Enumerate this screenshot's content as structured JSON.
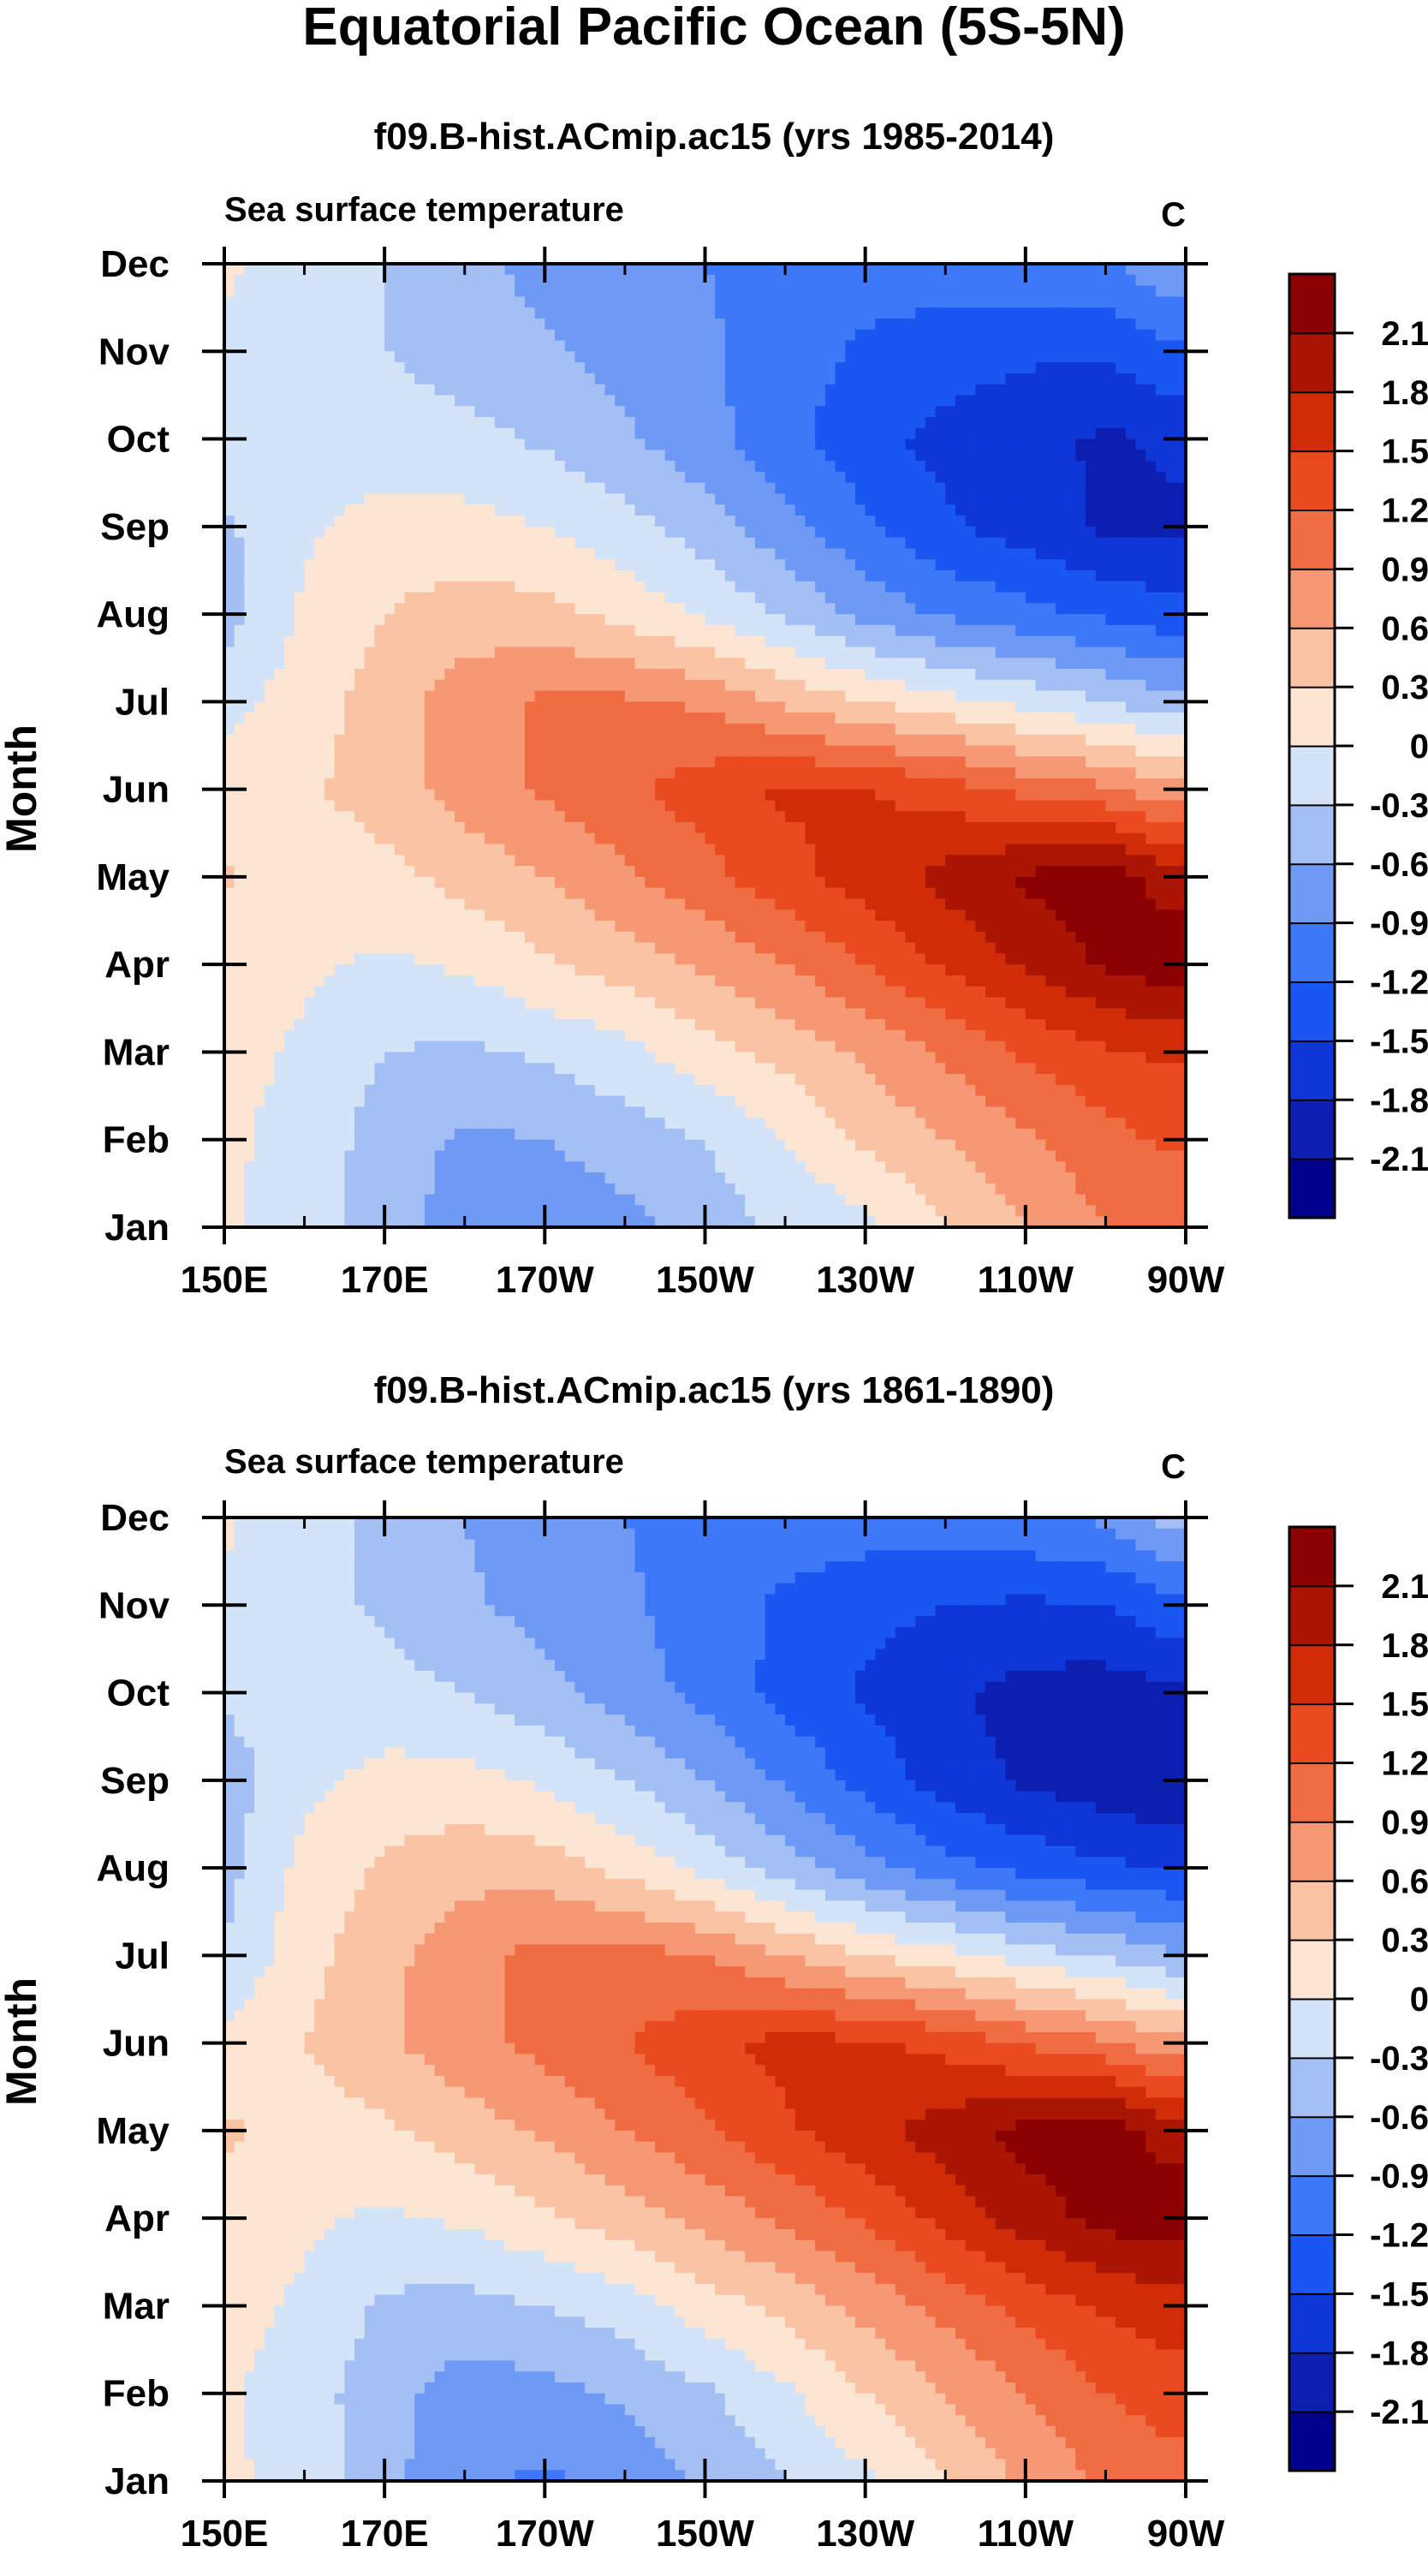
{
  "figure": {
    "title": "Equatorial Pacific Ocean (5S-5N)"
  },
  "chart_data": [
    {
      "type": "heatmap",
      "title": "f09.B-hist.ACmip.ac15 (yrs 1985-2014)",
      "subtitle_left": "Sea surface temperature",
      "subtitle_right": "C",
      "xlabel": "",
      "ylabel": "Month",
      "x_tick_labels": [
        "150E",
        "170E",
        "170W",
        "150W",
        "130W",
        "110W",
        "90W"
      ],
      "x_range": [
        150,
        270
      ],
      "y_tick_labels": [
        "Jan",
        "Feb",
        "Mar",
        "Apr",
        "May",
        "Jun",
        "Jul",
        "Aug",
        "Sep",
        "Oct",
        "Nov",
        "Dec"
      ],
      "longitudes": [
        150,
        160,
        170,
        180,
        190,
        200,
        210,
        220,
        230,
        240,
        250,
        260,
        268
      ],
      "months": [
        "Jan",
        "Feb",
        "Mar",
        "Apr",
        "May",
        "Jun",
        "Jul",
        "Aug",
        "Sep",
        "Oct",
        "Nov",
        "Dec"
      ],
      "values": [
        [
          0.05,
          -0.15,
          -0.45,
          -0.75,
          -0.85,
          -0.7,
          -0.45,
          -0.25,
          -0.1,
          0.3,
          0.6,
          0.9,
          0.95
        ],
        [
          0.05,
          -0.1,
          -0.45,
          -0.65,
          -0.6,
          -0.45,
          -0.3,
          0.0,
          0.35,
          0.6,
          0.85,
          1.1,
          1.25
        ],
        [
          0.1,
          -0.05,
          -0.3,
          -0.35,
          -0.25,
          -0.1,
          0.2,
          0.4,
          0.65,
          0.95,
          1.25,
          1.45,
          1.55
        ],
        [
          0.15,
          0.05,
          -0.05,
          0.05,
          0.25,
          0.45,
          0.65,
          0.9,
          1.2,
          1.55,
          1.85,
          2.15,
          2.3
        ],
        [
          0.35,
          0.1,
          0.2,
          0.4,
          0.6,
          0.85,
          1.1,
          1.4,
          1.65,
          1.9,
          2.15,
          2.3,
          1.95
        ],
        [
          0.1,
          0.25,
          0.45,
          0.75,
          0.95,
          1.15,
          1.35,
          1.55,
          1.5,
          1.35,
          1.1,
          0.95,
          0.7
        ],
        [
          -0.1,
          0.15,
          0.45,
          0.75,
          0.95,
          0.95,
          0.85,
          0.55,
          0.3,
          0.1,
          -0.1,
          -0.3,
          -0.5
        ],
        [
          -0.45,
          0.05,
          0.3,
          0.45,
          0.4,
          0.2,
          -0.05,
          -0.35,
          -0.7,
          -0.95,
          -1.1,
          -1.25,
          -1.4
        ],
        [
          -0.35,
          -0.05,
          0.1,
          0.1,
          0.0,
          -0.2,
          -0.45,
          -0.8,
          -1.15,
          -1.45,
          -1.65,
          -1.85,
          -1.85
        ],
        [
          -0.15,
          -0.1,
          -0.15,
          -0.2,
          -0.35,
          -0.55,
          -0.8,
          -1.1,
          -1.4,
          -1.6,
          -1.7,
          -1.85,
          -1.75
        ],
        [
          -0.05,
          -0.15,
          -0.3,
          -0.45,
          -0.55,
          -0.7,
          -0.85,
          -1.05,
          -1.25,
          -1.35,
          -1.45,
          -1.45,
          -1.25
        ],
        [
          0.05,
          -0.15,
          -0.3,
          -0.5,
          -0.7,
          -0.75,
          -0.9,
          -1.0,
          -1.05,
          -1.05,
          -1.0,
          -0.95,
          -0.65
        ]
      ],
      "colorbar": {
        "levels": [
          -2.1,
          -1.8,
          -1.5,
          -1.2,
          -0.9,
          -0.6,
          -0.3,
          0,
          0.3,
          0.6,
          0.9,
          1.2,
          1.5,
          1.8,
          2.1
        ],
        "labels": [
          "-2.1",
          "-1.8",
          "-1.5",
          "-1.2",
          "-0.9",
          "-0.6",
          "-0.3",
          "0",
          "0.3",
          "0.6",
          "0.9",
          "1.2",
          "1.5",
          "1.8",
          "2.1"
        ],
        "colors": [
          "#00008c",
          "#0d1fb0",
          "#0f37d8",
          "#1a57f2",
          "#3c78f8",
          "#6e9af5",
          "#a3bff3",
          "#d3e3f8",
          "#fde5d3",
          "#fac3a3",
          "#f69874",
          "#f06c43",
          "#ea4a1f",
          "#d12c08",
          "#ab1604",
          "#8b0000"
        ]
      }
    },
    {
      "type": "heatmap",
      "title": "f09.B-hist.ACmip.ac15 (yrs 1861-1890)",
      "subtitle_left": "Sea surface temperature",
      "subtitle_right": "C",
      "xlabel": "",
      "ylabel": "Month",
      "x_tick_labels": [
        "150E",
        "170E",
        "170W",
        "150W",
        "130W",
        "110W",
        "90W"
      ],
      "x_range": [
        150,
        270
      ],
      "y_tick_labels": [
        "Jan",
        "Feb",
        "Mar",
        "Apr",
        "May",
        "Jun",
        "Jul",
        "Aug",
        "Sep",
        "Oct",
        "Nov",
        "Dec"
      ],
      "longitudes": [
        150,
        160,
        170,
        180,
        190,
        200,
        210,
        220,
        230,
        240,
        250,
        260,
        268
      ],
      "months": [
        "Jan",
        "Feb",
        "Mar",
        "Apr",
        "May",
        "Jun",
        "Jul",
        "Aug",
        "Sep",
        "Oct",
        "Nov",
        "Dec"
      ],
      "values": [
        [
          0.05,
          -0.1,
          -0.5,
          -0.85,
          -0.95,
          -0.8,
          -0.55,
          -0.3,
          -0.05,
          0.3,
          0.65,
          0.95,
          1.05
        ],
        [
          0.05,
          -0.15,
          -0.5,
          -0.75,
          -0.7,
          -0.55,
          -0.35,
          -0.05,
          0.3,
          0.6,
          0.9,
          1.2,
          1.35
        ],
        [
          0.1,
          -0.05,
          -0.35,
          -0.4,
          -0.3,
          -0.15,
          0.15,
          0.4,
          0.7,
          1.0,
          1.3,
          1.55,
          1.65
        ],
        [
          0.15,
          0.05,
          -0.05,
          0.05,
          0.25,
          0.45,
          0.7,
          0.95,
          1.25,
          1.6,
          1.95,
          2.2,
          2.3
        ],
        [
          0.35,
          0.15,
          0.25,
          0.45,
          0.65,
          0.9,
          1.15,
          1.45,
          1.7,
          1.95,
          2.2,
          2.3,
          1.95
        ],
        [
          0.1,
          0.3,
          0.55,
          0.8,
          1.0,
          1.2,
          1.4,
          1.6,
          1.55,
          1.4,
          1.15,
          0.95,
          0.7
        ],
        [
          -0.3,
          0.2,
          0.5,
          0.8,
          1.0,
          1.0,
          0.9,
          0.6,
          0.3,
          0.1,
          -0.15,
          -0.35,
          -0.55
        ],
        [
          -0.4,
          0.1,
          0.35,
          0.5,
          0.45,
          0.2,
          -0.1,
          -0.45,
          -0.8,
          -1.1,
          -1.3,
          -1.45,
          -1.5
        ],
        [
          -0.45,
          -0.1,
          0.1,
          0.1,
          -0.05,
          -0.3,
          -0.6,
          -0.95,
          -1.3,
          -1.65,
          -1.85,
          -2.0,
          -2.1
        ],
        [
          -0.25,
          -0.15,
          -0.2,
          -0.3,
          -0.5,
          -0.75,
          -1.0,
          -1.3,
          -1.55,
          -1.75,
          -1.9,
          -1.95,
          -1.85
        ],
        [
          -0.05,
          -0.2,
          -0.35,
          -0.55,
          -0.7,
          -0.85,
          -1.05,
          -1.25,
          -1.4,
          -1.5,
          -1.55,
          -1.5,
          -1.3
        ],
        [
          0.05,
          -0.2,
          -0.35,
          -0.6,
          -0.8,
          -0.9,
          -1.0,
          -1.05,
          -1.05,
          -1.05,
          -0.95,
          -0.85,
          -0.5
        ]
      ],
      "colorbar": {
        "levels": [
          -2.1,
          -1.8,
          -1.5,
          -1.2,
          -0.9,
          -0.6,
          -0.3,
          0,
          0.3,
          0.6,
          0.9,
          1.2,
          1.5,
          1.8,
          2.1
        ],
        "labels": [
          "-2.1",
          "-1.8",
          "-1.5",
          "-1.2",
          "-0.9",
          "-0.6",
          "-0.3",
          "0",
          "0.3",
          "0.6",
          "0.9",
          "1.2",
          "1.5",
          "1.8",
          "2.1"
        ],
        "colors": [
          "#00008c",
          "#0d1fb0",
          "#0f37d8",
          "#1a57f2",
          "#3c78f8",
          "#6e9af5",
          "#a3bff3",
          "#d3e3f8",
          "#fde5d3",
          "#fac3a3",
          "#f69874",
          "#f06c43",
          "#ea4a1f",
          "#d12c08",
          "#ab1604",
          "#8b0000"
        ]
      }
    }
  ]
}
